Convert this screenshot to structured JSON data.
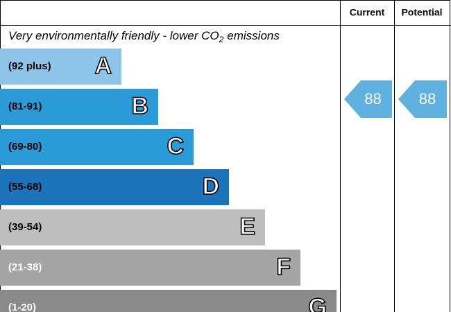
{
  "header": {
    "current": "Current",
    "potential": "Potential"
  },
  "subtitle": [
    "Very environmentally friendly - lower CO",
    "2",
    "emissions"
  ],
  "bands": [
    {
      "range": "(92 plus)",
      "letter": "A"
    },
    {
      "range": "(81-91)",
      "letter": "B"
    },
    {
      "range": "(69-80)",
      "letter": "C"
    },
    {
      "range": "(55-68)",
      "letter": "D"
    },
    {
      "range": "(39-54)",
      "letter": "E"
    },
    {
      "range": "(21-38)",
      "letter": "F"
    },
    {
      "range": "(1-20)",
      "letter": "G"
    }
  ],
  "current": "88",
  "potential": "88"
}
